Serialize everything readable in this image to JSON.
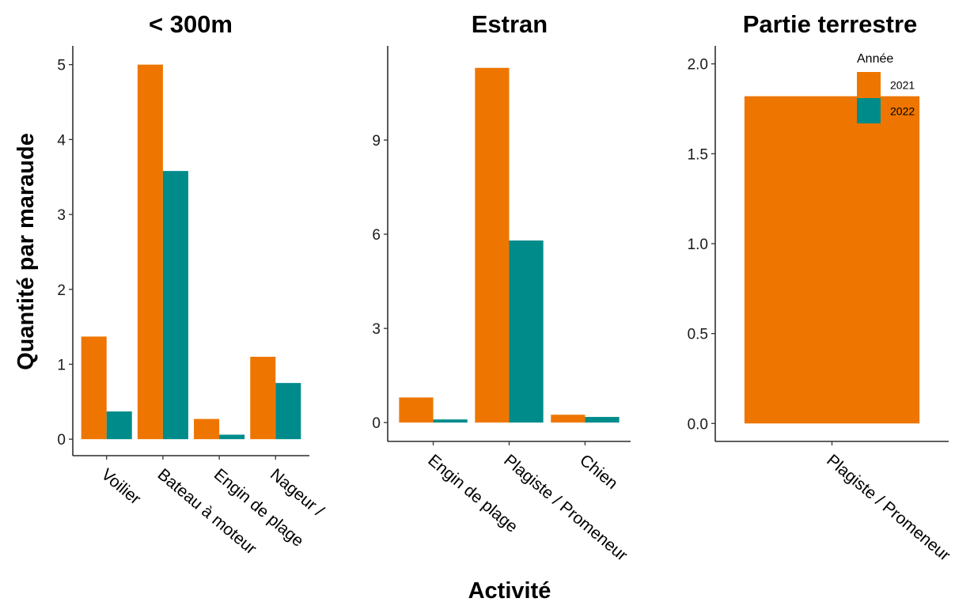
{
  "colors": {
    "2021": "#EE7600",
    "2022": "#008B8B"
  },
  "ylabel": "Quantité par maraude",
  "xlabel": "Activité",
  "legend": {
    "title": "Année",
    "placement": "inside-top-right-of-third-panel",
    "entries": [
      "2021",
      "2022"
    ]
  },
  "chart_data": [
    {
      "type": "bar",
      "title": "< 300m",
      "categories": [
        "Voilier",
        "Bateau à moteur",
        "Engin de plage",
        "Nageur /"
      ],
      "series": [
        {
          "name": "2021",
          "values": [
            1.37,
            5.0,
            0.27,
            1.1
          ]
        },
        {
          "name": "2022",
          "values": [
            0.37,
            3.58,
            0.06,
            0.75
          ]
        }
      ],
      "ylim": [
        -0.22,
        5.25
      ],
      "yticks": [
        0,
        1,
        2,
        3,
        4,
        5
      ],
      "ytick_labels": [
        "0",
        "1",
        "2",
        "3",
        "4",
        "5"
      ],
      "grid": false
    },
    {
      "type": "bar",
      "title": "Estran",
      "categories": [
        "Engin de plage",
        "Plagiste / Promeneur",
        "Chien"
      ],
      "series": [
        {
          "name": "2021",
          "values": [
            0.8,
            11.3,
            0.25
          ]
        },
        {
          "name": "2022",
          "values": [
            0.1,
            5.8,
            0.18
          ]
        }
      ],
      "ylim": [
        -0.6,
        12.0
      ],
      "yticks": [
        0,
        3,
        6,
        9
      ],
      "ytick_labels": [
        "0",
        "3",
        "6",
        "9"
      ],
      "grid": false
    },
    {
      "type": "bar",
      "title": "Partie terrestre",
      "categories": [
        "Plagiste / Promeneur"
      ],
      "series": [
        {
          "name": "2021",
          "values": [
            1.82
          ]
        }
      ],
      "ylim": [
        -0.1,
        2.1
      ],
      "yticks": [
        0.0,
        0.5,
        1.0,
        1.5,
        2.0
      ],
      "ytick_labels": [
        "0.0",
        "0.5",
        "1.0",
        "1.5",
        "2.0"
      ],
      "grid": false
    }
  ]
}
